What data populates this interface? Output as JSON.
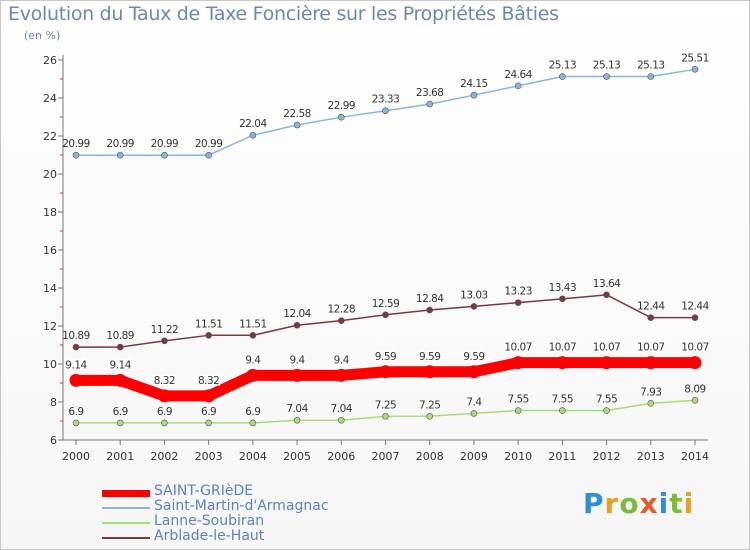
{
  "chart_data": {
    "type": "line",
    "title": "Evolution du Taux de Taxe Foncière sur les Propriétés Bâties",
    "ylabel": "(en %)",
    "xlabel": "",
    "ylim": [
      6,
      26
    ],
    "yticks": [
      6,
      8,
      10,
      12,
      14,
      16,
      18,
      20,
      22,
      24,
      26
    ],
    "x": [
      "2000",
      "2001",
      "2002",
      "2003",
      "2004",
      "2005",
      "2006",
      "2007",
      "2008",
      "2009",
      "2010",
      "2011",
      "2012",
      "2013",
      "2014"
    ],
    "grid": false,
    "legend_position": "bottom-left",
    "series": [
      {
        "name": "SAINT-GRIèDE",
        "color": "#ff0000",
        "values": [
          9.14,
          9.14,
          8.32,
          8.32,
          9.4,
          9.4,
          9.4,
          9.59,
          9.59,
          9.59,
          10.07,
          10.07,
          10.07,
          10.07,
          10.07
        ],
        "labels": [
          "9.14",
          "9.14",
          "8.32",
          "8.32",
          "9.4",
          "9.4",
          "9.4",
          "9.59",
          "9.59",
          "9.59",
          "10.07",
          "10.07",
          "10.07",
          "10.07",
          "10.07"
        ]
      },
      {
        "name": "Saint-Martin-d'Armagnac",
        "color": "#8ab4de",
        "values": [
          20.99,
          20.99,
          20.99,
          20.99,
          22.04,
          22.58,
          22.99,
          23.33,
          23.68,
          24.15,
          24.64,
          25.13,
          25.13,
          25.13,
          25.51
        ],
        "labels": [
          "20.99",
          "20.99",
          "20.99",
          "20.99",
          "22.04",
          "22.58",
          "22.99",
          "23.33",
          "23.68",
          "24.15",
          "24.64",
          "25.13",
          "25.13",
          "25.13",
          "25.51"
        ]
      },
      {
        "name": "Lanne-Soubiran",
        "color": "#a8dc7c",
        "values": [
          6.9,
          6.9,
          6.9,
          6.9,
          6.9,
          7.04,
          7.04,
          7.25,
          7.25,
          7.4,
          7.55,
          7.55,
          7.55,
          7.93,
          8.09
        ],
        "labels": [
          "6.9",
          "6.9",
          "6.9",
          "6.9",
          "6.9",
          "7.04",
          "7.04",
          "7.25",
          "7.25",
          "7.4",
          "7.55",
          "7.55",
          "7.55",
          "7.93",
          "8.09"
        ]
      },
      {
        "name": "Arblade-le-Haut",
        "color": "#7a3a3a",
        "values": [
          10.89,
          10.89,
          11.22,
          11.51,
          11.51,
          12.04,
          12.28,
          12.59,
          12.84,
          13.03,
          13.23,
          13.43,
          13.64,
          12.44,
          12.44
        ],
        "labels": [
          "10.89",
          "10.89",
          "11.22",
          "11.51",
          "11.51",
          "12.04",
          "12.28",
          "12.59",
          "12.84",
          "13.03",
          "13.23",
          "13.43",
          "13.64",
          "12.44",
          "12.44"
        ]
      }
    ]
  },
  "logo": {
    "text": "Proxiti"
  }
}
